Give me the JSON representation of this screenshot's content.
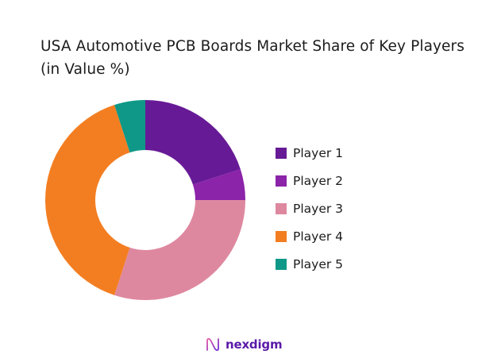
{
  "title": "USA Automotive PCB Boards Market Share of Key Players (in Value %)",
  "logo": {
    "text": "nexdigm",
    "icon": "nexdigm-wave-icon"
  },
  "chart_data": {
    "type": "pie",
    "variant": "donut",
    "title": "USA Automotive PCB Boards Market Share of Key Players (in Value %)",
    "categories": [
      "Player 1",
      "Player 2",
      "Player 3",
      "Player 4",
      "Player 5"
    ],
    "values": [
      20,
      5,
      30,
      40,
      5
    ],
    "unit": "%",
    "colors": [
      "#671a96",
      "#8b24a8",
      "#de88a0",
      "#f37e21",
      "#0f9887"
    ],
    "start_angle_deg": 0,
    "direction": "clockwise",
    "legend_position": "right"
  },
  "legend": {
    "items": [
      {
        "label": "Player 1",
        "color": "#671a96"
      },
      {
        "label": "Player 2",
        "color": "#8b24a8"
      },
      {
        "label": "Player 3",
        "color": "#de88a0"
      },
      {
        "label": "Player 4",
        "color": "#f37e21"
      },
      {
        "label": "Player 5",
        "color": "#0f9887"
      }
    ]
  }
}
